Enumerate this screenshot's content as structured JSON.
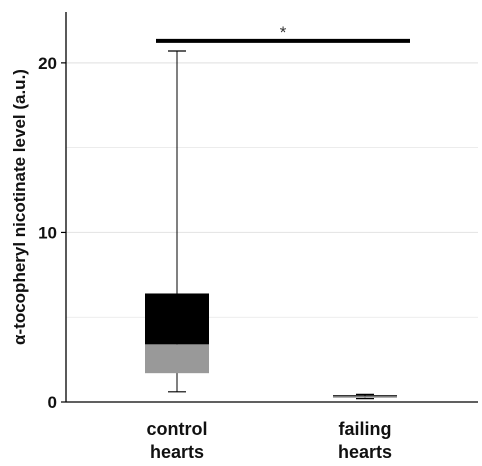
{
  "chart_data": {
    "type": "box",
    "title": "",
    "xlabel": "",
    "ylabel": "α-tocopheryl nicotinate level (a.u.)",
    "ylim": [
      0,
      23
    ],
    "y_ticks": [
      0,
      10,
      20
    ],
    "grid": true,
    "categories": [
      {
        "label_lines": [
          "control",
          "hearts"
        ]
      },
      {
        "label_lines": [
          "failing",
          "hearts"
        ]
      }
    ],
    "boxes": [
      {
        "min": 0.6,
        "q1": 1.7,
        "median": 3.4,
        "q3": 6.4,
        "max": 20.7
      },
      {
        "min": 0.2,
        "q1": 0.25,
        "median": 0.35,
        "q3": 0.4,
        "max": 0.45
      }
    ],
    "significance": {
      "label": "*",
      "y": 21.3,
      "between": [
        0,
        1
      ]
    },
    "colors": {
      "upper_box": "#000000",
      "lower_box": "#999999",
      "grid": "#e6e6e6",
      "axis": "#000000"
    }
  }
}
